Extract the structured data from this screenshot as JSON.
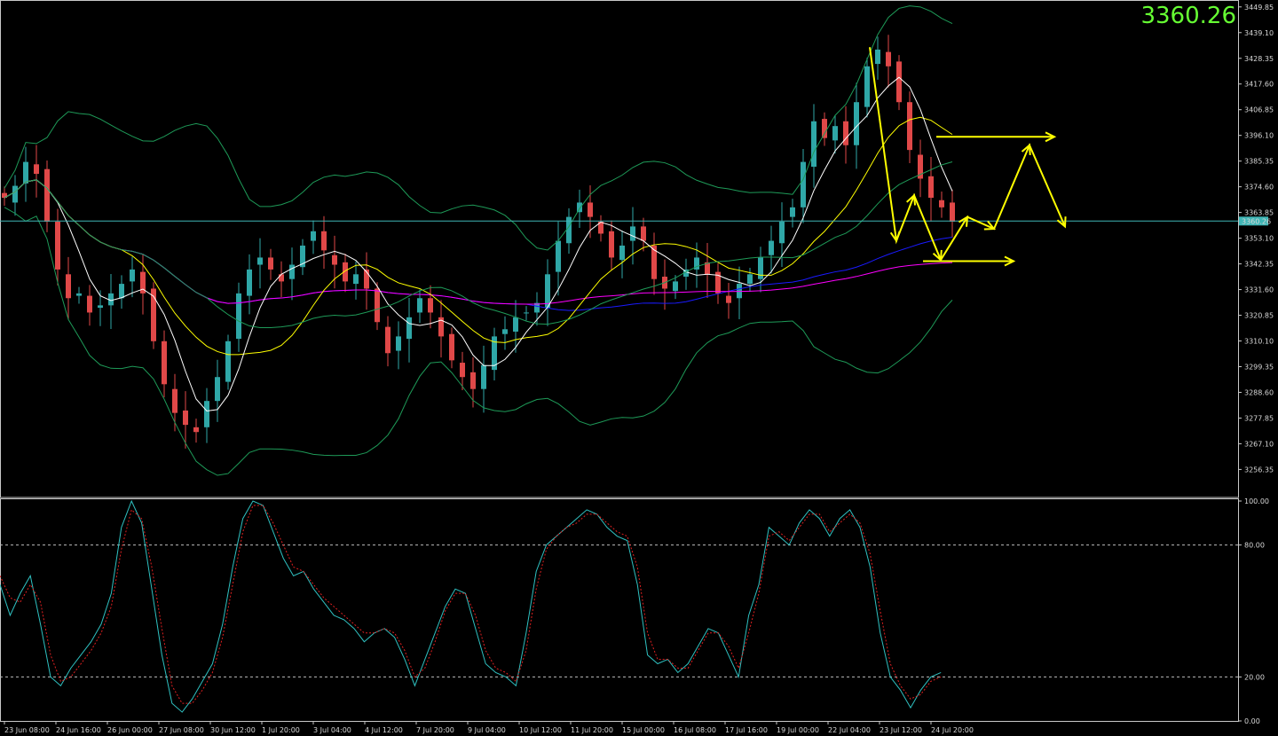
{
  "price_display": "3360.26",
  "chart_data": [
    {
      "type": "candlestick",
      "panel": "price",
      "ylim": [
        3245.0,
        3452.0
      ],
      "y_ticks": [
        "3449.85",
        "3439.10",
        "3428.35",
        "3417.60",
        "3406.85",
        "3396.10",
        "3385.35",
        "3374.60",
        "3363.85",
        "3353.10",
        "3342.35",
        "3331.60",
        "3320.85",
        "3310.10",
        "3299.35",
        "3288.60",
        "3277.85",
        "3267.10",
        "3256.35"
      ],
      "current_price": "3360.26",
      "x_labels": [
        "23 Jun 08:00",
        "24 Jun 16:00",
        "26 Jun 00:00",
        "27 Jun 08:00",
        "30 Jun 12:00",
        "1 Jul 20:00",
        "3 Jul 04:00",
        "4 Jul 12:00",
        "7 Jul 20:00",
        "9 Jul 04:00",
        "10 Jul 12:00",
        "11 Jul 20:00",
        "15 Jul 00:00",
        "16 Jul 08:00",
        "17 Jul 16:00",
        "19 Jul 00:00",
        "22 Jul 04:00",
        "23 Jul 12:00",
        "24 Jul 20:00"
      ],
      "close_path": [
        3370,
        3375,
        3385,
        3380,
        3360,
        3340,
        3328,
        3330,
        3322,
        3325,
        3330,
        3334,
        3340,
        3330,
        3310,
        3292,
        3280,
        3275,
        3272,
        3285,
        3295,
        3310,
        3330,
        3340,
        3345,
        3340,
        3335,
        3342,
        3350,
        3356,
        3348,
        3342,
        3335,
        3338,
        3332,
        3318,
        3305,
        3312,
        3320,
        3328,
        3322,
        3312,
        3302,
        3295,
        3290,
        3300,
        3312,
        3315,
        3320,
        3322,
        3326,
        3338,
        3352,
        3362,
        3368,
        3362,
        3355,
        3345,
        3350,
        3358,
        3352,
        3336,
        3332,
        3335,
        3340,
        3345,
        3338,
        3330,
        3326,
        3334,
        3338,
        3345,
        3352,
        3360,
        3366,
        3385,
        3402,
        3395,
        3400,
        3392,
        3410,
        3425,
        3432,
        3425,
        3410,
        3390,
        3378,
        3370,
        3366,
        3360
      ],
      "series": [
        {
          "name": "",
          "color": "#ffffff",
          "period": 5
        },
        {
          "name": "",
          "color": "#ffff00",
          "period": 12
        },
        {
          "name": "",
          "color": "#1a1aff",
          "period": 50
        },
        {
          "name": "",
          "color": "#ff00ff",
          "period": 100
        },
        {
          "name": "",
          "color": "#1e9a58",
          "kind": "bollinger"
        }
      ],
      "annotations": {
        "color": "#ffff00",
        "zigzag": [
          [
            3433,
            0
          ],
          [
            3352,
            6
          ],
          [
            3371,
            10
          ],
          [
            3344,
            16
          ],
          [
            3362,
            22
          ],
          [
            3357,
            28
          ],
          [
            3392,
            36
          ],
          [
            3358,
            44
          ]
        ],
        "upper_arrow": [
          3395.5,
          3395.5
        ],
        "lower_arrow": [
          3343.5,
          3343.5
        ]
      }
    },
    {
      "type": "line",
      "panel": "stochastic",
      "ylim": [
        0,
        100
      ],
      "y_ticks": [
        "100.00",
        "80.00",
        "20.00",
        "0.00"
      ],
      "levels": [
        80,
        20
      ],
      "series": [
        {
          "name": "",
          "color": "#2fc1c1",
          "style": "solid",
          "values": [
            62,
            48,
            58,
            66,
            44,
            20,
            16,
            24,
            30,
            36,
            44,
            58,
            88,
            100,
            90,
            60,
            30,
            8,
            4,
            10,
            18,
            26,
            44,
            70,
            92,
            100,
            98,
            86,
            74,
            66,
            68,
            60,
            54,
            48,
            46,
            42,
            36,
            40,
            42,
            38,
            28,
            16,
            28,
            40,
            52,
            60,
            58,
            42,
            26,
            22,
            20,
            16,
            40,
            68,
            80,
            84,
            88,
            92,
            96,
            94,
            88,
            84,
            82,
            62,
            30,
            26,
            28,
            22,
            26,
            34,
            42,
            40,
            30,
            20,
            48,
            62,
            88,
            84,
            80,
            90,
            96,
            92,
            84,
            92,
            96,
            88,
            70,
            40,
            20,
            14,
            6,
            14,
            20,
            22
          ]
        },
        {
          "name": "",
          "color": "#e02020",
          "style": "dashed",
          "values": [
            66,
            56,
            54,
            62,
            54,
            30,
            18,
            20,
            26,
            32,
            40,
            52,
            78,
            96,
            92,
            70,
            42,
            16,
            8,
            8,
            14,
            22,
            38,
            62,
            86,
            98,
            98,
            90,
            80,
            70,
            68,
            62,
            56,
            52,
            48,
            44,
            40,
            40,
            42,
            40,
            32,
            20,
            24,
            36,
            50,
            58,
            58,
            48,
            32,
            24,
            22,
            18,
            32,
            60,
            78,
            84,
            88,
            90,
            94,
            94,
            90,
            86,
            84,
            70,
            40,
            28,
            28,
            24,
            24,
            32,
            40,
            40,
            34,
            24,
            40,
            58,
            84,
            86,
            82,
            88,
            94,
            94,
            86,
            90,
            94,
            90,
            76,
            50,
            26,
            16,
            10,
            12,
            18,
            20
          ]
        }
      ]
    }
  ]
}
